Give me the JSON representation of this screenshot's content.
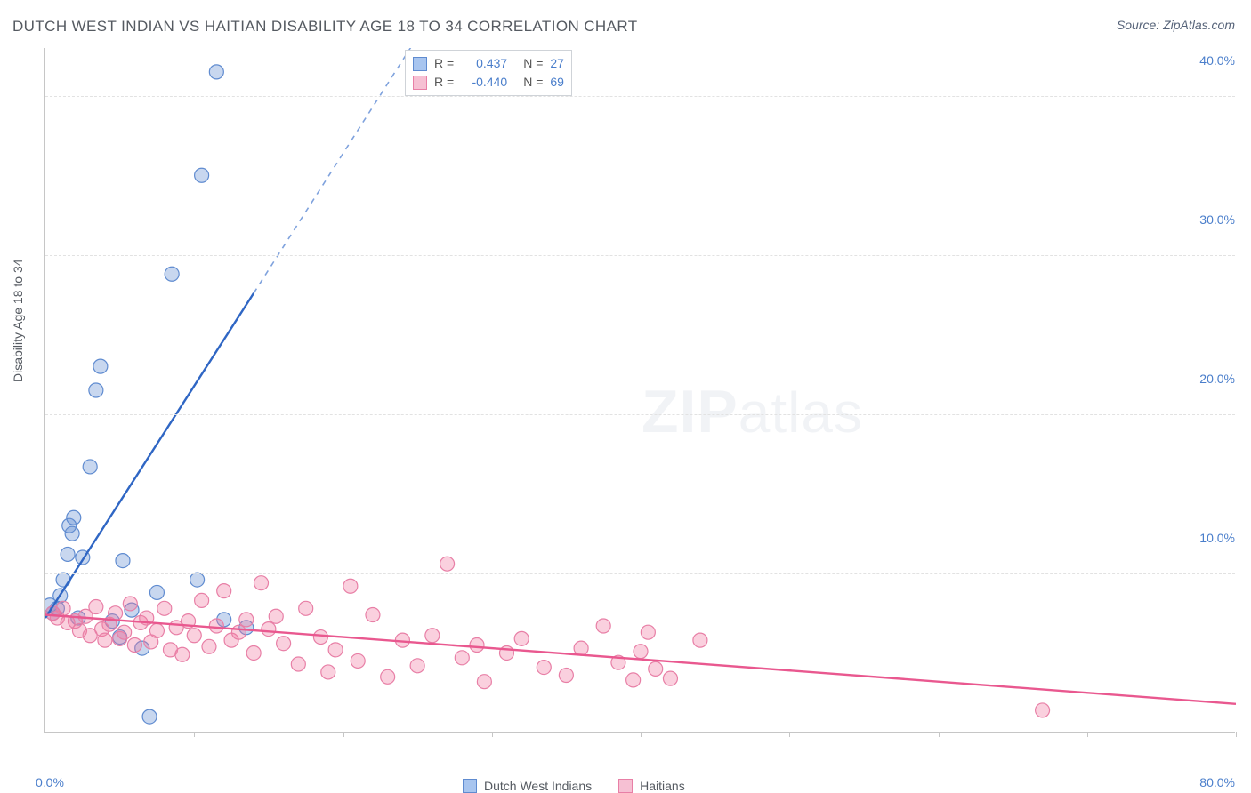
{
  "title": "DUTCH WEST INDIAN VS HAITIAN DISABILITY AGE 18 TO 34 CORRELATION CHART",
  "source": "Source: ZipAtlas.com",
  "ylabel": "Disability Age 18 to 34",
  "watermark_zip": "ZIP",
  "watermark_atlas": "atlas",
  "chart": {
    "type": "scatter",
    "xlim": [
      0,
      80
    ],
    "ylim": [
      0,
      43
    ],
    "background_color": "#ffffff",
    "grid_color": "#e2e2e2",
    "axis_color": "#c6c6c6",
    "tick_label_color": "#4a7ecb",
    "title_color": "#555a61",
    "title_fontsize": 17,
    "label_fontsize": 14,
    "marker_radius": 8,
    "y_ticks": [
      10,
      20,
      30,
      40
    ],
    "y_tick_labels": [
      "10.0%",
      "20.0%",
      "30.0%",
      "40.0%"
    ],
    "x_tick_labels": [
      "0.0%",
      "80.0%"
    ],
    "x_tick_marks": [
      10,
      20,
      30,
      40,
      50,
      60,
      70,
      80
    ],
    "legend_top": {
      "border_color": "#cfd3d8",
      "rows": [
        {
          "swatch_fill": "#a8c5ef",
          "swatch_stroke": "#5f8bd0",
          "r_label": "R =",
          "r_value": "0.437",
          "n_label": "N =",
          "n_value": "27",
          "value_color": "#4a7ecb"
        },
        {
          "swatch_fill": "#f6c0d3",
          "swatch_stroke": "#e87fa6",
          "r_label": "R =",
          "r_value": "-0.440",
          "n_label": "N =",
          "n_value": "69",
          "value_color": "#4a7ecb"
        }
      ]
    },
    "legend_bottom": [
      {
        "swatch_fill": "#a8c5ef",
        "swatch_stroke": "#5f8bd0",
        "label": "Dutch West Indians"
      },
      {
        "swatch_fill": "#f6c0d3",
        "swatch_stroke": "#e87fa6",
        "label": "Haitians"
      }
    ],
    "series": [
      {
        "name": "Dutch West Indians",
        "color_fill": "rgba(96,140,209,.35)",
        "color_stroke": "#5f8bd0",
        "trend": {
          "color": "#2f66c4",
          "dash_color": "#7fa2dd",
          "x1": 0,
          "y1": 7.2,
          "x2": 14,
          "y2": 27.6,
          "x_dash_to": 30,
          "y_dash_to": 51
        },
        "points": [
          [
            0.3,
            8.0
          ],
          [
            0.5,
            7.5
          ],
          [
            0.8,
            7.8
          ],
          [
            1.0,
            8.6
          ],
          [
            1.2,
            9.6
          ],
          [
            1.5,
            11.2
          ],
          [
            1.6,
            13.0
          ],
          [
            1.8,
            12.5
          ],
          [
            1.9,
            13.5
          ],
          [
            2.2,
            7.2
          ],
          [
            2.5,
            11.0
          ],
          [
            3.0,
            16.7
          ],
          [
            3.4,
            21.5
          ],
          [
            3.7,
            23.0
          ],
          [
            4.5,
            7.0
          ],
          [
            5.2,
            10.8
          ],
          [
            5.8,
            7.7
          ],
          [
            6.5,
            5.3
          ],
          [
            7.5,
            8.8
          ],
          [
            8.5,
            28.8
          ],
          [
            10.2,
            9.6
          ],
          [
            10.5,
            35.0
          ],
          [
            11.5,
            41.5
          ],
          [
            12.0,
            7.1
          ],
          [
            13.5,
            6.6
          ],
          [
            7.0,
            1.0
          ],
          [
            5.0,
            6.0
          ]
        ]
      },
      {
        "name": "Haitians",
        "color_fill": "rgba(240,120,160,.35)",
        "color_stroke": "#e87fa6",
        "trend": {
          "color": "#e9588f",
          "x1": 0,
          "y1": 7.4,
          "x2": 80,
          "y2": 1.8
        },
        "points": [
          [
            0.5,
            7.5
          ],
          [
            0.8,
            7.2
          ],
          [
            1.2,
            7.8
          ],
          [
            1.5,
            6.9
          ],
          [
            2.0,
            7.0
          ],
          [
            2.3,
            6.4
          ],
          [
            2.7,
            7.3
          ],
          [
            3.0,
            6.1
          ],
          [
            3.4,
            7.9
          ],
          [
            3.8,
            6.5
          ],
          [
            4.0,
            5.8
          ],
          [
            4.3,
            6.8
          ],
          [
            4.7,
            7.5
          ],
          [
            5.0,
            5.9
          ],
          [
            5.3,
            6.3
          ],
          [
            5.7,
            8.1
          ],
          [
            6.0,
            5.5
          ],
          [
            6.4,
            6.9
          ],
          [
            6.8,
            7.2
          ],
          [
            7.1,
            5.7
          ],
          [
            7.5,
            6.4
          ],
          [
            8.0,
            7.8
          ],
          [
            8.4,
            5.2
          ],
          [
            8.8,
            6.6
          ],
          [
            9.2,
            4.9
          ],
          [
            9.6,
            7.0
          ],
          [
            10.0,
            6.1
          ],
          [
            10.5,
            8.3
          ],
          [
            11.0,
            5.4
          ],
          [
            11.5,
            6.7
          ],
          [
            12.0,
            8.9
          ],
          [
            12.5,
            5.8
          ],
          [
            13.0,
            6.3
          ],
          [
            13.5,
            7.1
          ],
          [
            14.0,
            5.0
          ],
          [
            14.5,
            9.4
          ],
          [
            15.0,
            6.5
          ],
          [
            15.5,
            7.3
          ],
          [
            16.0,
            5.6
          ],
          [
            17.0,
            4.3
          ],
          [
            17.5,
            7.8
          ],
          [
            18.5,
            6.0
          ],
          [
            19.0,
            3.8
          ],
          [
            19.5,
            5.2
          ],
          [
            20.5,
            9.2
          ],
          [
            21.0,
            4.5
          ],
          [
            22.0,
            7.4
          ],
          [
            23.0,
            3.5
          ],
          [
            24.0,
            5.8
          ],
          [
            25.0,
            4.2
          ],
          [
            26.0,
            6.1
          ],
          [
            27.0,
            10.6
          ],
          [
            28.0,
            4.7
          ],
          [
            29.0,
            5.5
          ],
          [
            29.5,
            3.2
          ],
          [
            31.0,
            5.0
          ],
          [
            32.0,
            5.9
          ],
          [
            33.5,
            4.1
          ],
          [
            35.0,
            3.6
          ],
          [
            36.0,
            5.3
          ],
          [
            37.5,
            6.7
          ],
          [
            38.5,
            4.4
          ],
          [
            40.0,
            5.1
          ],
          [
            40.5,
            6.3
          ],
          [
            41.0,
            4.0
          ],
          [
            42.0,
            3.4
          ],
          [
            44.0,
            5.8
          ],
          [
            67.0,
            1.4
          ],
          [
            39.5,
            3.3
          ]
        ]
      }
    ]
  }
}
